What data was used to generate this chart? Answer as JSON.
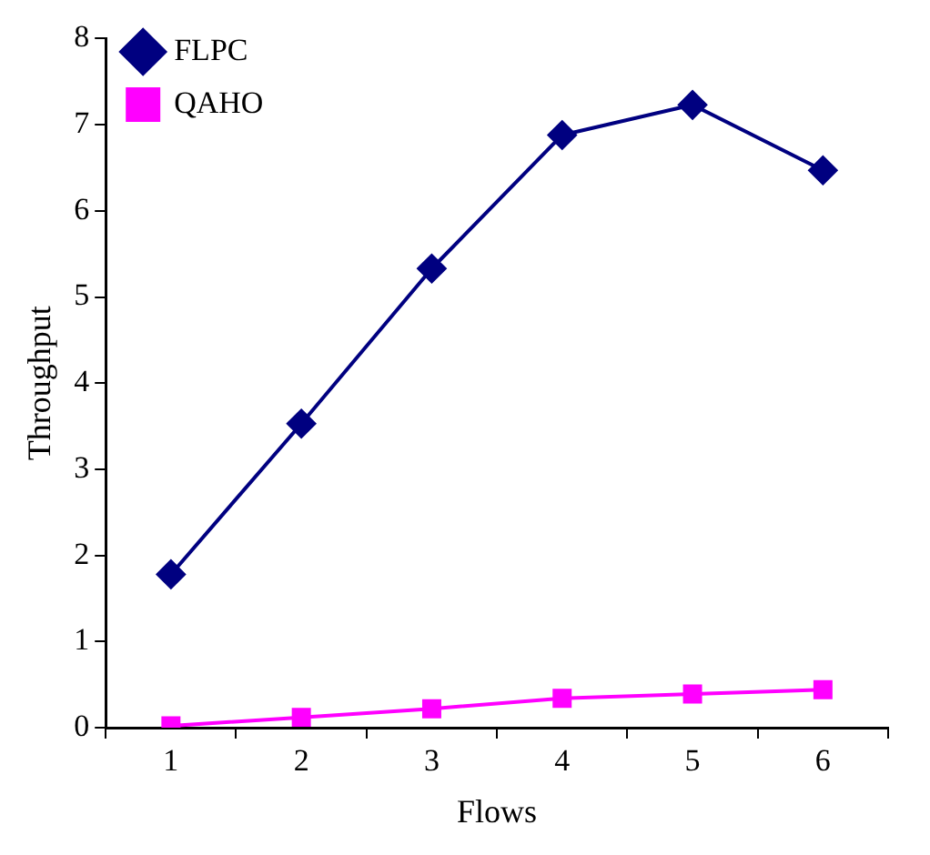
{
  "chart_data": {
    "type": "line",
    "xlabel": "Flows",
    "ylabel": "Throughput",
    "categories": [
      "1",
      "2",
      "3",
      "4",
      "5",
      "6"
    ],
    "series": [
      {
        "name": "FLPC",
        "color": "#000080",
        "marker": "diamond",
        "values": [
          1.78,
          3.53,
          5.33,
          6.88,
          7.23,
          6.47
        ]
      },
      {
        "name": "QAHO",
        "color": "#ff00ff",
        "marker": "square",
        "values": [
          0.02,
          0.12,
          0.22,
          0.34,
          0.39,
          0.44
        ]
      }
    ],
    "ylim": [
      0,
      8
    ],
    "yticks": [
      0,
      1,
      2,
      3,
      4,
      5,
      6,
      7,
      8
    ],
    "grid": false,
    "legend": "top left"
  }
}
